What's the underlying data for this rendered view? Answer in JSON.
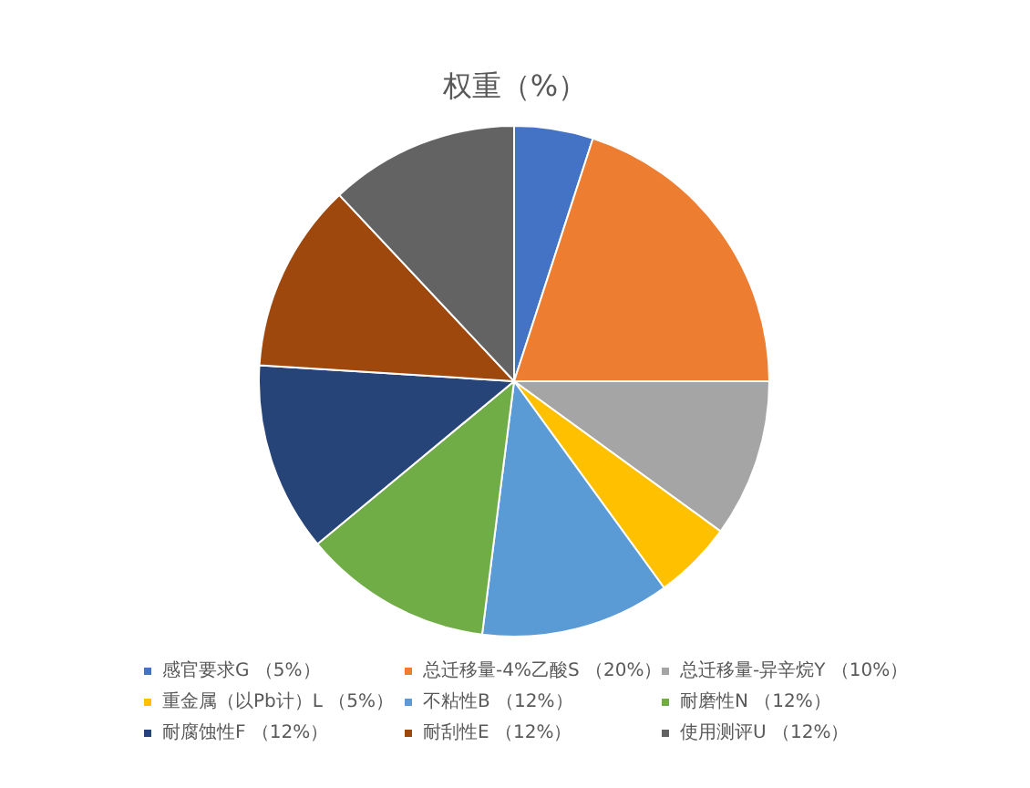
{
  "chart_data": {
    "type": "pie",
    "title": "权重（%）",
    "categories": [
      "感官要求G （5%）",
      "总迁移量-4%乙酸S （20%）",
      "总迁移量-异辛烷Y （10%）",
      "重金属（以Pb计）L （5%）",
      "不粘性B （12%）",
      "耐磨性N （12%）",
      "耐腐蚀性F （12%）",
      "耐刮性E （12%）",
      "使用测评U （12%）"
    ],
    "values": [
      5,
      20,
      10,
      5,
      12,
      12,
      12,
      12,
      12
    ],
    "colors": [
      "#4472c4",
      "#ed7d31",
      "#a5a5a5",
      "#ffc000",
      "#5b9bd5",
      "#70ad47",
      "#264478",
      "#9e480e",
      "#636363"
    ],
    "legend": "bottom"
  }
}
